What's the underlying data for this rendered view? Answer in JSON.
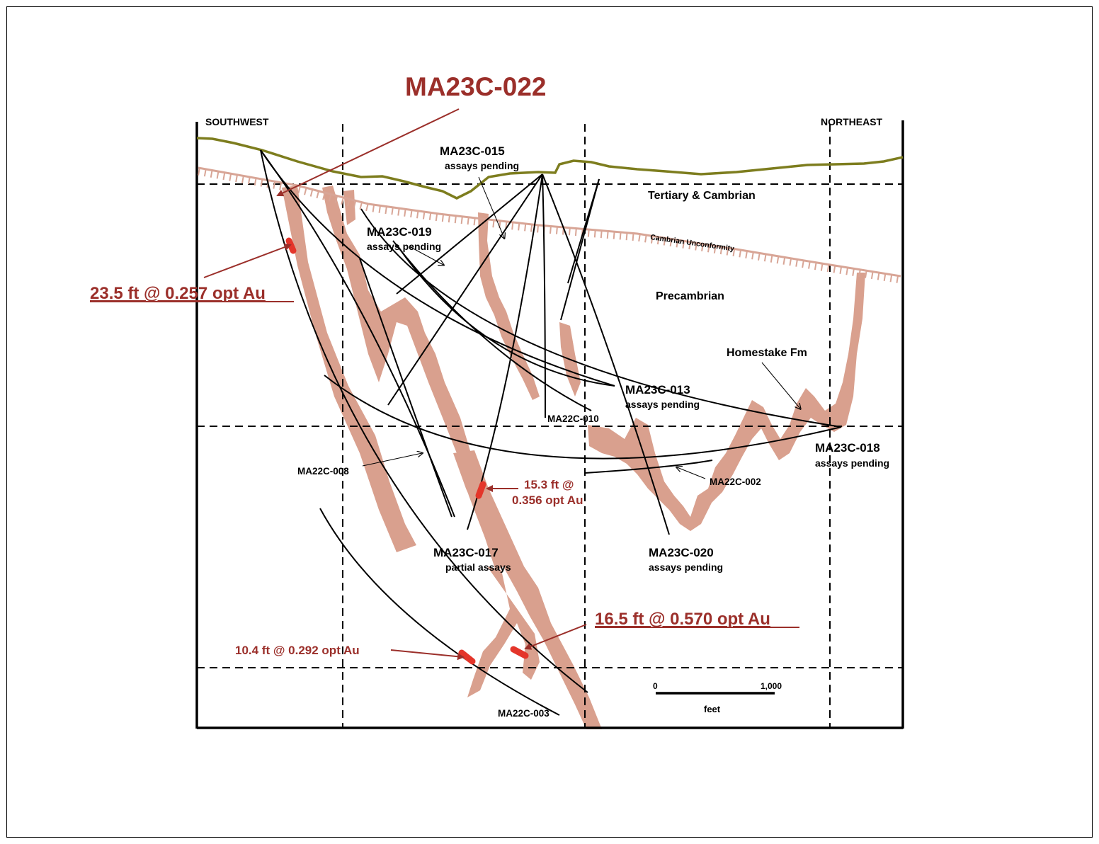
{
  "title": "MA23C-022",
  "directions": {
    "left": "SOUTHWEST",
    "right": "NORTHEAST"
  },
  "units": {
    "upper": "Tertiary & Cambrian",
    "unconformity": "Cambrian Unconformity",
    "lower": "Precambrian",
    "formation": "Homestake Fm"
  },
  "holes": [
    {
      "id": "MA23C-015",
      "note": "assays pending"
    },
    {
      "id": "MA23C-019",
      "note": "assays pending"
    },
    {
      "id": "MA23C-013",
      "note": "assays pending"
    },
    {
      "id": "MA23C-018",
      "note": "assays pending"
    },
    {
      "id": "MA23C-017",
      "note": "partial assays"
    },
    {
      "id": "MA23C-020",
      "note": "assays pending"
    },
    {
      "id": "MA22C-010",
      "note": ""
    },
    {
      "id": "MA22C-008",
      "note": ""
    },
    {
      "id": "MA22C-002",
      "note": ""
    },
    {
      "id": "MA22C-003",
      "note": ""
    }
  ],
  "intercepts": [
    {
      "text": "23.5 ft @ 0.257 opt Au"
    },
    {
      "line1": "15.3 ft @",
      "line2": "0.356 opt Au"
    },
    {
      "text": "16.5 ft @ 0.570 opt Au"
    },
    {
      "text": "10.4 ft @ 0.292 opt Au"
    }
  ],
  "scale": {
    "start": "0",
    "end": "1,000",
    "unit": "feet"
  },
  "colors": {
    "formation": "#d9a08e",
    "topo": "#7d7d1e",
    "unconformity": "#d8a596",
    "intercept": "#e4352a",
    "callout": "#9b2f2a"
  }
}
